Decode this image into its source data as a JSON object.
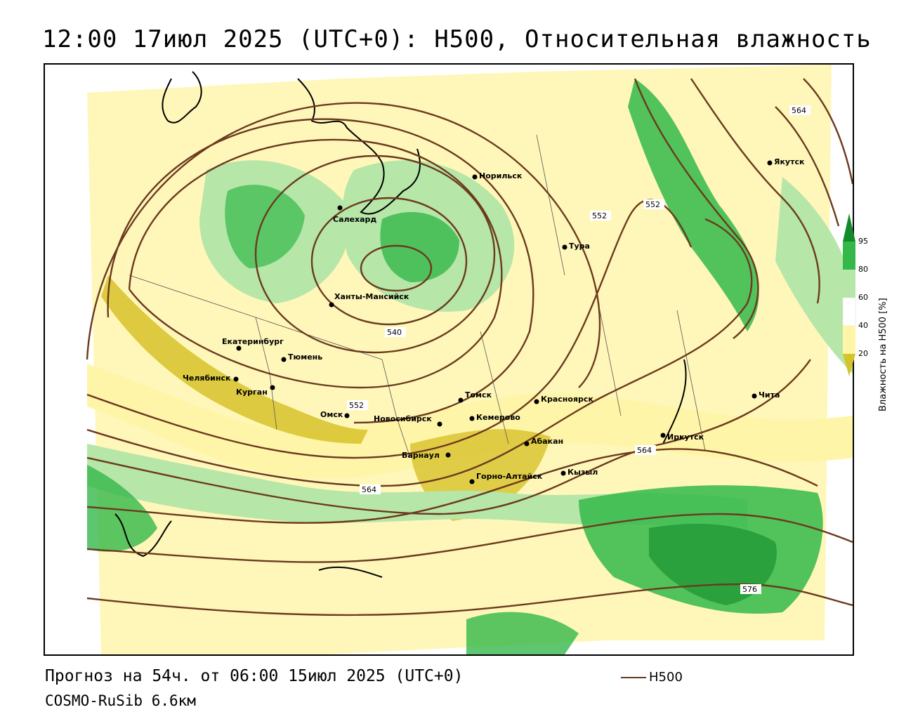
{
  "header": {
    "title": "12:00 17июл 2025 (UTC+0): H500, Относительная влажность"
  },
  "footer": {
    "forecast": "Прогноз на 54ч. от 06:00 15июл 2025 (UTC+0)",
    "model": "COSMO-RuSib 6.6км",
    "legend_h500": "H500"
  },
  "colorbar": {
    "title": "Влажность на H500 [%]",
    "ticks": [
      "95",
      "80",
      "60",
      "40",
      "20"
    ],
    "colors": {
      "c95": "#138a2c",
      "c80": "#34b84a",
      "c60": "#b6e6a8",
      "c40": "#ffffff",
      "c20": "#fff5a8",
      "c0": "#d8c22a"
    }
  },
  "contours": {
    "color": "#6b3a1e",
    "labels": [
      "564",
      "552",
      "552",
      "540",
      "552",
      "564",
      "564",
      "576"
    ]
  },
  "cities": [
    {
      "name": "Норильск"
    },
    {
      "name": "Якутск"
    },
    {
      "name": "Салехард"
    },
    {
      "name": "Тура"
    },
    {
      "name": "Ханты-Мансийск"
    },
    {
      "name": "Екатеринбург"
    },
    {
      "name": "Тюмень"
    },
    {
      "name": "Челябинск"
    },
    {
      "name": "Курган"
    },
    {
      "name": "Омск"
    },
    {
      "name": "Томск"
    },
    {
      "name": "Красноярск"
    },
    {
      "name": "Новосибирск"
    },
    {
      "name": "Кемерово"
    },
    {
      "name": "Абакан"
    },
    {
      "name": "Иркутск"
    },
    {
      "name": "Чита"
    },
    {
      "name": "Барнаул"
    },
    {
      "name": "Горно-Алтайск"
    },
    {
      "name": "Кызыл"
    }
  ]
}
